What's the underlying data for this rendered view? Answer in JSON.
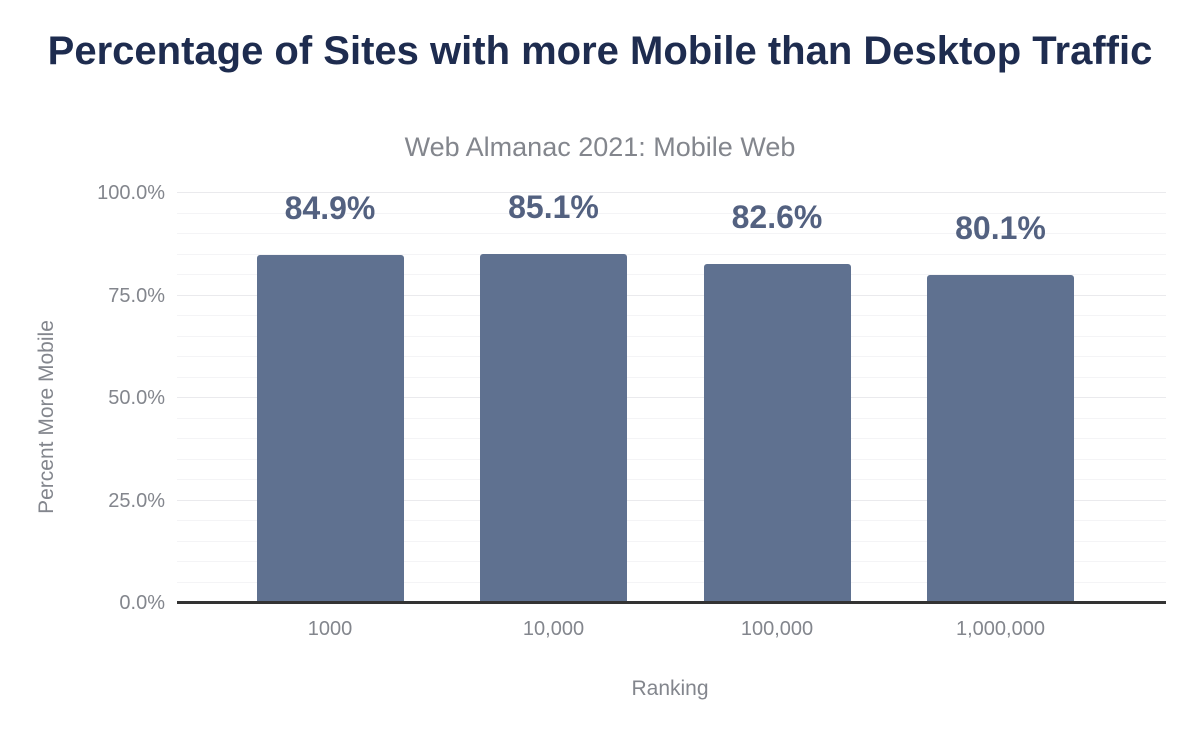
{
  "chart_data": {
    "type": "bar",
    "title": "Percentage of Sites with more Mobile than Desktop Traffic",
    "subtitle": "Web Almanac 2021: Mobile Web",
    "xlabel": "Ranking",
    "ylabel": "Percent More Mobile",
    "categories": [
      "1000",
      "10,000",
      "100,000",
      "1,000,000"
    ],
    "values": [
      84.9,
      85.1,
      82.6,
      80.1
    ],
    "value_labels": [
      "84.9%",
      "85.1%",
      "82.6%",
      "80.1%"
    ],
    "y_ticks": [
      {
        "value": 0,
        "label": "0.0%"
      },
      {
        "value": 25,
        "label": "25.0%"
      },
      {
        "value": 50,
        "label": "50.0%"
      },
      {
        "value": 75,
        "label": "75.0%"
      },
      {
        "value": 100,
        "label": "100.0%"
      }
    ],
    "ylim": [
      0,
      100
    ],
    "grid": {
      "minor_step": 5,
      "major_step": 25,
      "visible": true
    },
    "legend": "none",
    "colors": {
      "bar": "#5f7190",
      "value_label": "#536180",
      "title": "#1e2c4f",
      "muted_text": "#83868d",
      "axis_line": "#333333",
      "grid_major": "#eaeaed",
      "grid_minor": "#f4f4f6",
      "background": "#ffffff"
    }
  }
}
